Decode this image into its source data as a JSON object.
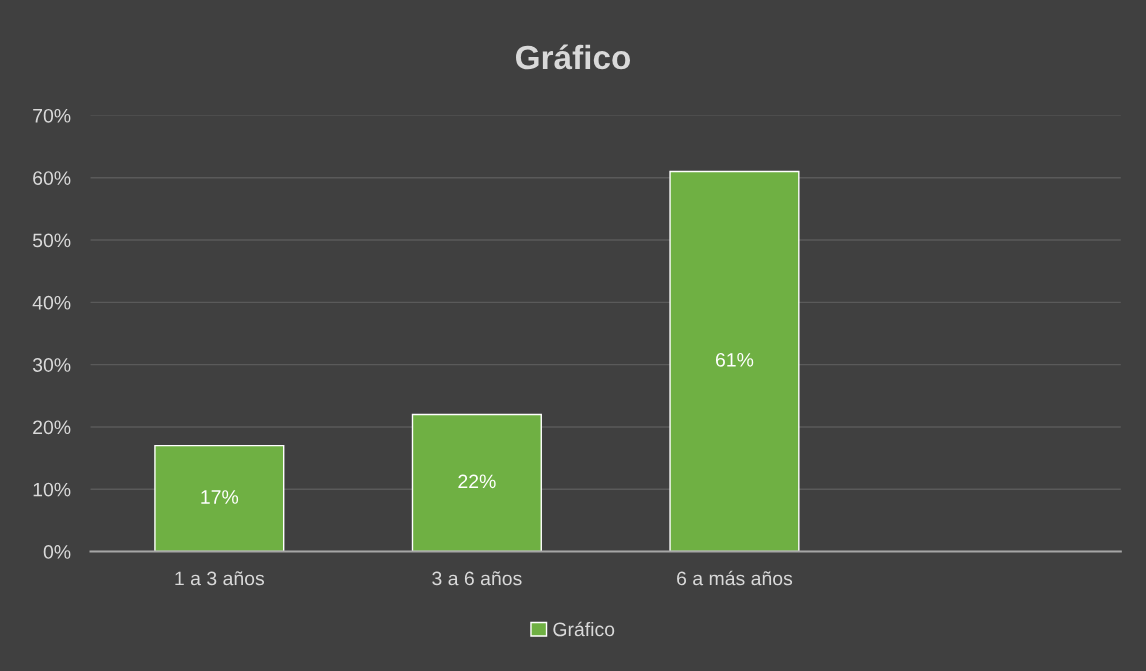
{
  "chart_data": {
    "type": "bar",
    "title": "Gráfico",
    "categories": [
      "1 a 3 años",
      "3 a 6 años",
      "6 a más años",
      null
    ],
    "series": [
      {
        "name": "Gráfico",
        "color": "#6fb043",
        "values": [
          17,
          22,
          61,
          null
        ],
        "value_labels": [
          "17%",
          "22%",
          "61%",
          null
        ]
      }
    ],
    "ylim": [
      0,
      70
    ],
    "yticks": [
      {
        "value": 0,
        "label": "0%"
      },
      {
        "value": 10,
        "label": "10%"
      },
      {
        "value": 20,
        "label": "20%"
      },
      {
        "value": 30,
        "label": "30%"
      },
      {
        "value": 40,
        "label": "40%"
      },
      {
        "value": 50,
        "label": "50%"
      },
      {
        "value": 60,
        "label": "60%"
      },
      {
        "value": 70,
        "label": "70%"
      }
    ],
    "grid": "y",
    "legend": "bottom"
  }
}
